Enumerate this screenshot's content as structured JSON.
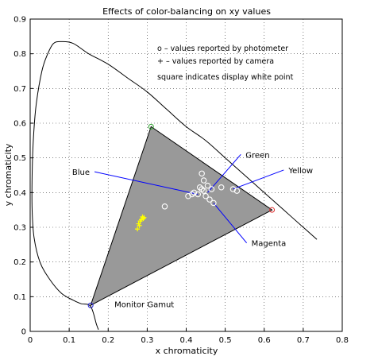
{
  "chart_data": {
    "type": "scatter",
    "title": "Effects of color-balancing on xy values",
    "xlabel": "x chromaticity",
    "ylabel": "y chromaticity",
    "xlim": [
      0,
      0.8
    ],
    "ylim": [
      0,
      0.9
    ],
    "xticks": [
      "0",
      "0.1",
      "0.2",
      "0.3",
      "0.4",
      "0.5",
      "0.6",
      "0.7",
      "0.8"
    ],
    "yticks": [
      "0",
      "0.1",
      "0.2",
      "0.3",
      "0.4",
      "0.5",
      "0.6",
      "0.7",
      "0.8",
      "0.9"
    ],
    "grid": true,
    "legend_lines": [
      "o – values reported by photometer",
      "+ – values reported by camera",
      "square indicates display white point"
    ],
    "spectral_locus": [
      [
        0.735,
        0.265
      ],
      [
        0.7,
        0.3
      ],
      [
        0.65,
        0.35
      ],
      [
        0.6,
        0.4
      ],
      [
        0.55,
        0.45
      ],
      [
        0.5,
        0.5
      ],
      [
        0.45,
        0.55
      ],
      [
        0.4,
        0.59
      ],
      [
        0.35,
        0.64
      ],
      [
        0.3,
        0.69
      ],
      [
        0.25,
        0.73
      ],
      [
        0.2,
        0.77
      ],
      [
        0.15,
        0.8
      ],
      [
        0.11,
        0.83
      ],
      [
        0.08,
        0.835
      ],
      [
        0.06,
        0.83
      ],
      [
        0.045,
        0.8
      ],
      [
        0.03,
        0.75
      ],
      [
        0.015,
        0.65
      ],
      [
        0.008,
        0.55
      ],
      [
        0.005,
        0.45
      ],
      [
        0.005,
        0.35
      ],
      [
        0.01,
        0.27
      ],
      [
        0.025,
        0.2
      ],
      [
        0.05,
        0.15
      ],
      [
        0.08,
        0.11
      ],
      [
        0.11,
        0.09
      ],
      [
        0.13,
        0.08
      ],
      [
        0.155,
        0.072
      ],
      [
        0.17,
        0.02
      ],
      [
        0.175,
        0.005
      ]
    ],
    "gamut": {
      "label": "Monitor Gamut",
      "red": [
        0.62,
        0.35
      ],
      "green": [
        0.31,
        0.59
      ],
      "blue": [
        0.155,
        0.075
      ],
      "fill": "#999999",
      "red_color": "#e03030",
      "green_color": "#2ca02c",
      "blue_color": "#1f1fd0"
    },
    "photometer_points": [
      [
        0.345,
        0.36
      ],
      [
        0.405,
        0.39
      ],
      [
        0.415,
        0.395
      ],
      [
        0.42,
        0.4
      ],
      [
        0.43,
        0.395
      ],
      [
        0.435,
        0.415
      ],
      [
        0.44,
        0.41
      ],
      [
        0.445,
        0.405
      ],
      [
        0.445,
        0.435
      ],
      [
        0.44,
        0.455
      ],
      [
        0.45,
        0.39
      ],
      [
        0.455,
        0.42
      ],
      [
        0.46,
        0.38
      ],
      [
        0.465,
        0.41
      ],
      [
        0.47,
        0.37
      ],
      [
        0.49,
        0.415
      ],
      [
        0.52,
        0.41
      ],
      [
        0.53,
        0.405
      ]
    ],
    "camera_points": [
      [
        0.275,
        0.295
      ],
      [
        0.278,
        0.31
      ],
      [
        0.282,
        0.318
      ],
      [
        0.285,
        0.322
      ],
      [
        0.288,
        0.33
      ],
      [
        0.29,
        0.325
      ],
      [
        0.292,
        0.328
      ],
      [
        0.28,
        0.305
      ]
    ],
    "annotations": [
      {
        "text": "Green",
        "at": [
          0.54,
          0.51
        ],
        "to": [
          0.455,
          0.4
        ]
      },
      {
        "text": "Blue",
        "at": [
          0.165,
          0.46
        ],
        "to": [
          0.43,
          0.395
        ]
      },
      {
        "text": "Yellow",
        "at": [
          0.65,
          0.465
        ],
        "to": [
          0.52,
          0.41
        ]
      },
      {
        "text": "Magenta",
        "at": [
          0.555,
          0.255
        ],
        "to": [
          0.47,
          0.37
        ]
      }
    ],
    "colors": {
      "locus": "#000000",
      "points": "#ffffff",
      "camera": "#ffff00",
      "callout_lines": "#0000ff",
      "grid": "#333333"
    }
  }
}
